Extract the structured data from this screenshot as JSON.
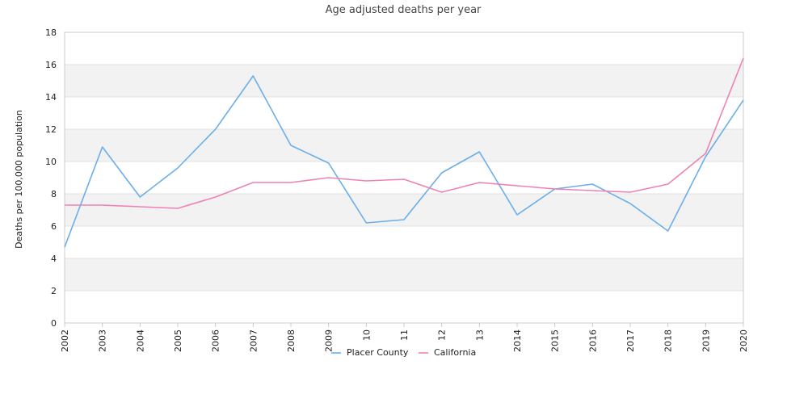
{
  "chart_data": {
    "type": "line",
    "title": "Age adjusted deaths per year",
    "xlabel": "",
    "ylabel": "Deaths per 100,000 population",
    "ylim": [
      0,
      18
    ],
    "yticks": [
      0,
      2,
      4,
      6,
      8,
      10,
      12,
      14,
      16,
      18
    ],
    "x": [
      "2002",
      "2003",
      "2004",
      "2005",
      "2006",
      "2007",
      "2008",
      "2009",
      "10",
      "11",
      "12",
      "13",
      "2014",
      "2015",
      "2016",
      "2017",
      "2018",
      "2019",
      "2020"
    ],
    "series": [
      {
        "name": "Placer County",
        "color": "#6aaeea",
        "values": [
          4.7,
          10.9,
          7.8,
          9.6,
          12.0,
          15.3,
          11.0,
          9.9,
          6.2,
          6.4,
          9.3,
          10.6,
          6.7,
          8.3,
          8.6,
          7.4,
          5.7,
          10.3,
          13.8
        ]
      },
      {
        "name": "California",
        "color": "#ee82b4",
        "values": [
          7.3,
          7.3,
          7.2,
          7.1,
          7.8,
          8.7,
          8.7,
          9.0,
          8.8,
          8.9,
          8.1,
          8.7,
          8.5,
          8.3,
          8.2,
          8.1,
          8.6,
          10.5,
          16.4
        ]
      }
    ],
    "grid": true,
    "band_colors": [
      "#f2f2f2",
      "#ffffff"
    ],
    "legend_position": "bottom-center"
  }
}
